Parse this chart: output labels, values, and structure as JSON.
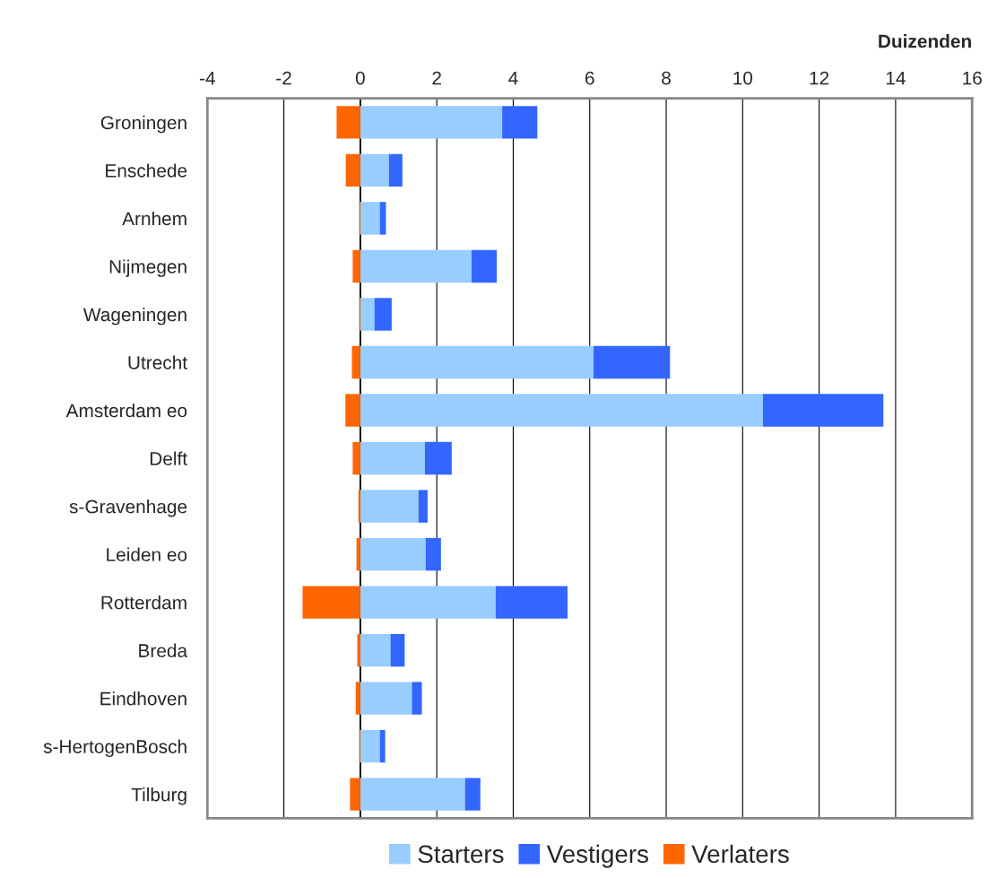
{
  "chart_data": {
    "type": "bar",
    "orientation": "horizontal",
    "stacked": true,
    "xlabel": "Duizenden",
    "categories": [
      "Groningen",
      "Enschede",
      "Arnhem",
      "Nijmegen",
      "Wageningen",
      "Utrecht",
      "Amsterdam eo",
      "Delft",
      "s-Gravenhage",
      "Leiden eo",
      "Rotterdam",
      "Breda",
      "Eindhoven",
      "s-HertogenBosch",
      "Tilburg"
    ],
    "series": [
      {
        "name": "Starters",
        "color": "#99ccff",
        "values": [
          3.71,
          0.75,
          0.51,
          2.91,
          0.37,
          6.1,
          10.53,
          1.69,
          1.52,
          1.71,
          3.54,
          0.79,
          1.35,
          0.51,
          2.74
        ]
      },
      {
        "name": "Vestigers",
        "color": "#3366ff",
        "values": [
          0.92,
          0.35,
          0.16,
          0.66,
          0.45,
          2.0,
          3.15,
          0.7,
          0.24,
          0.4,
          1.88,
          0.37,
          0.26,
          0.14,
          0.4
        ]
      },
      {
        "name": "Verlaters",
        "color": "#ff6600",
        "values": [
          -0.62,
          -0.38,
          -0.03,
          -0.2,
          -0.03,
          -0.22,
          -0.39,
          -0.2,
          -0.05,
          -0.1,
          -1.51,
          -0.08,
          -0.12,
          -0.03,
          -0.27
        ]
      }
    ],
    "xlim": [
      -4,
      16
    ],
    "xticks": [
      -4,
      -2,
      0,
      2,
      4,
      6,
      8,
      10,
      12,
      14,
      16
    ],
    "ref_lines": [
      {
        "axis": "x",
        "value": 0,
        "color": "#000000"
      }
    ],
    "grid": "x",
    "legend": "bottom"
  }
}
